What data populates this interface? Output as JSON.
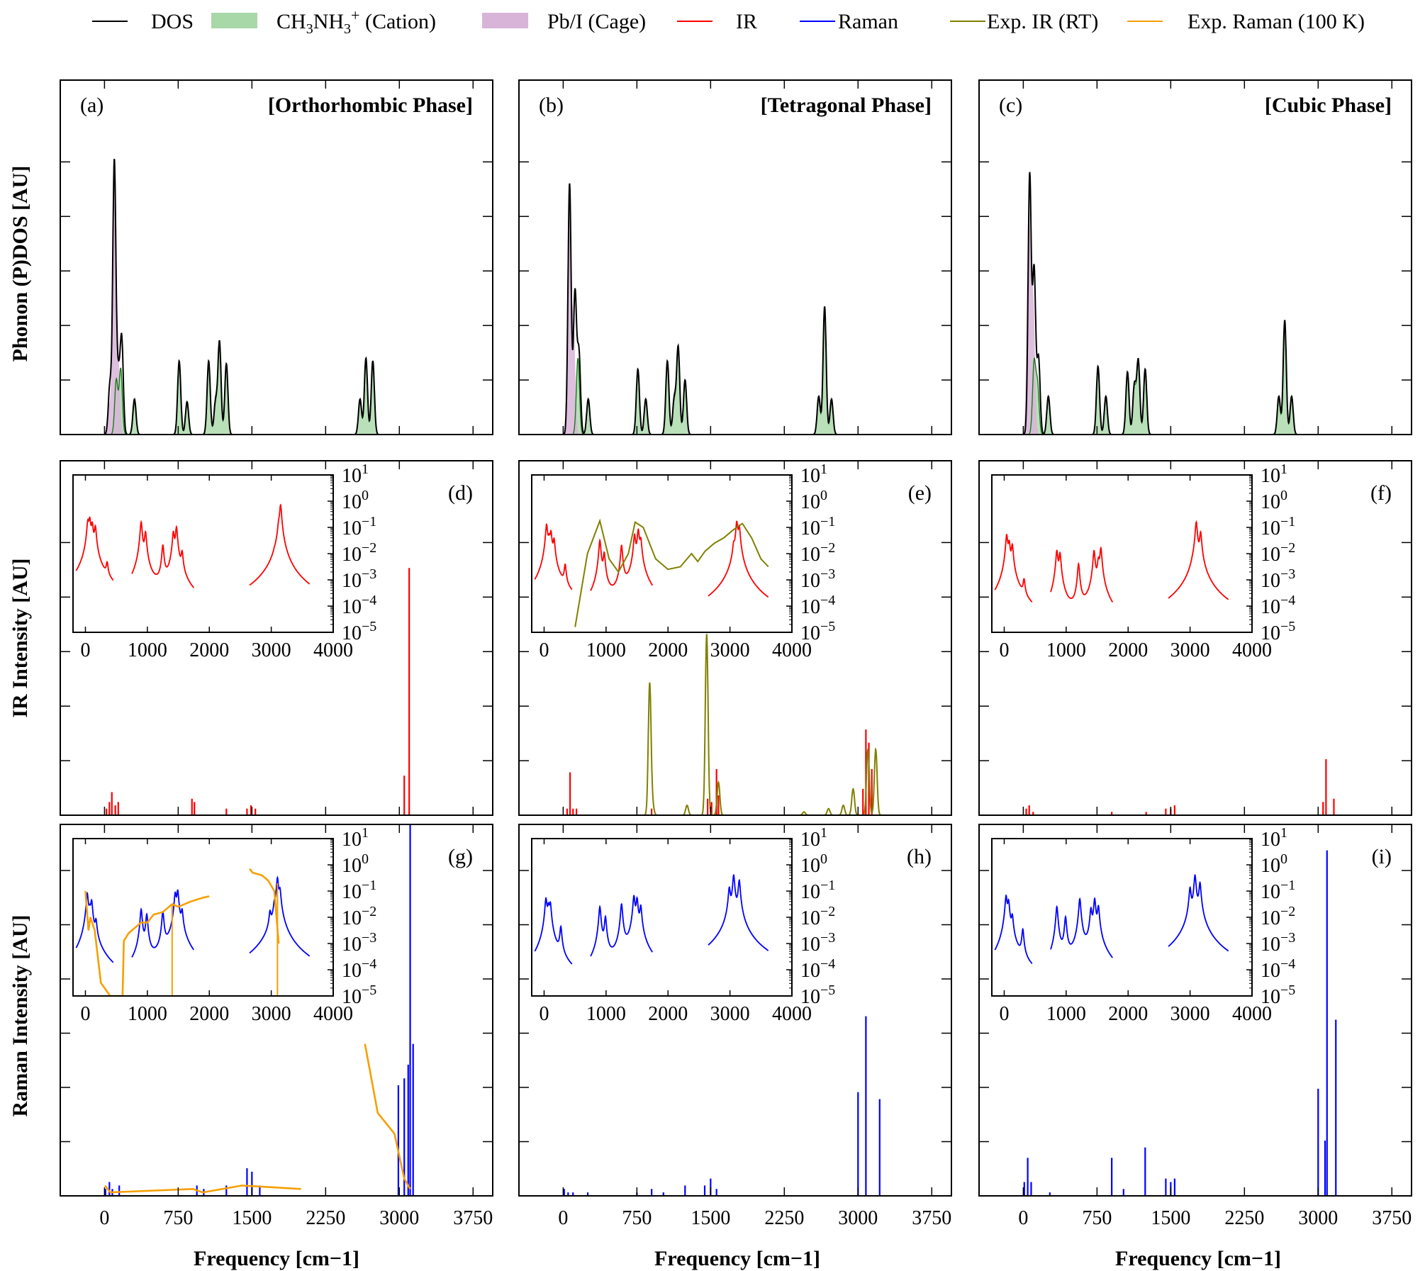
{
  "legend": [
    {
      "label": "DOS",
      "kind": "line",
      "color": "#000000"
    },
    {
      "label": "CH3NH3+ (Cation)",
      "kind": "fill",
      "color": "#a8d8a8"
    },
    {
      "label": "Pb/I (Cage)",
      "kind": "fill",
      "color": "#d8b4d8"
    },
    {
      "label": "IR",
      "kind": "line",
      "color": "#ff0000"
    },
    {
      "label": "Raman",
      "kind": "line",
      "color": "#0000ff"
    },
    {
      "label": "Exp. IR (RT)",
      "kind": "line",
      "color": "#808000"
    },
    {
      "label": "Exp. Raman (100 K)",
      "kind": "line",
      "color": "#f5a000"
    }
  ],
  "row_labels": [
    "Phonon (P)DOS [AU]",
    "IR Intensity [AU]",
    "Raman Intensity [AU]"
  ],
  "col_labels": [
    "Frequency [cm−1]",
    "Frequency [cm−1]",
    "Frequency [cm−1]"
  ],
  "panels": [
    {
      "tag": "(a)",
      "phase": "[Orthorhombic Phase]"
    },
    {
      "tag": "(b)",
      "phase": "[Tetragonal Phase]"
    },
    {
      "tag": "(c)",
      "phase": "[Cubic Phase]"
    },
    {
      "tag": "(d)"
    },
    {
      "tag": "(e)"
    },
    {
      "tag": "(f)"
    },
    {
      "tag": "(g)"
    },
    {
      "tag": "(h)"
    },
    {
      "tag": "(i)"
    }
  ],
  "chart_data": {
    "type": "line",
    "x_range": [
      -450,
      3950
    ],
    "x_ticks": [
      0,
      750,
      1500,
      2250,
      3000,
      3750
    ],
    "inset_x_range": [
      -200,
      4000
    ],
    "inset_x_ticks": [
      0,
      1000,
      2000,
      3000,
      4000
    ],
    "inset_y_decades": [
      "10^1",
      "10^0",
      "10^-1",
      "10^-2",
      "10^-3",
      "10^-4",
      "10^-5"
    ],
    "dos": {
      "orthorhombic": {
        "total": [
          [
            55,
            0.18
          ],
          [
            100,
            1.0
          ],
          [
            140,
            0.2
          ],
          [
            175,
            0.35
          ],
          [
            305,
            0.13
          ],
          [
            760,
            0.27
          ],
          [
            840,
            0.12
          ],
          [
            1060,
            0.27
          ],
          [
            1130,
            0.12
          ],
          [
            1170,
            0.34
          ],
          [
            1240,
            0.26
          ],
          [
            2600,
            0.13
          ],
          [
            2660,
            0.28
          ],
          [
            2730,
            0.27
          ]
        ],
        "cage": [
          [
            45,
            0.1
          ],
          [
            100,
            0.92
          ],
          [
            140,
            0.25
          ]
        ],
        "cation": [
          [
            120,
            0.2
          ],
          [
            165,
            0.24
          ],
          [
            305,
            0.12
          ],
          [
            760,
            0.26
          ],
          [
            840,
            0.11
          ],
          [
            1060,
            0.26
          ],
          [
            1130,
            0.11
          ],
          [
            1170,
            0.33
          ],
          [
            1240,
            0.25
          ],
          [
            2600,
            0.12
          ],
          [
            2660,
            0.27
          ],
          [
            2730,
            0.26
          ]
        ]
      },
      "tetragonal": {
        "total": [
          [
            65,
            0.92
          ],
          [
            120,
            0.52
          ],
          [
            160,
            0.3
          ],
          [
            255,
            0.13
          ],
          [
            760,
            0.24
          ],
          [
            840,
            0.13
          ],
          [
            1060,
            0.27
          ],
          [
            1130,
            0.13
          ],
          [
            1170,
            0.32
          ],
          [
            1240,
            0.2
          ],
          [
            2600,
            0.14
          ],
          [
            2660,
            0.47
          ],
          [
            2730,
            0.13
          ]
        ],
        "cage": [
          [
            60,
            0.9
          ],
          [
            105,
            0.4
          ]
        ],
        "cation": [
          [
            150,
            0.28
          ],
          [
            255,
            0.12
          ],
          [
            760,
            0.23
          ],
          [
            840,
            0.12
          ],
          [
            1060,
            0.26
          ],
          [
            1130,
            0.12
          ],
          [
            1170,
            0.31
          ],
          [
            1240,
            0.19
          ],
          [
            2600,
            0.13
          ],
          [
            2660,
            0.46
          ],
          [
            2730,
            0.12
          ]
        ]
      },
      "cubic": {
        "total": [
          [
            65,
            0.95
          ],
          [
            110,
            0.6
          ],
          [
            155,
            0.28
          ],
          [
            255,
            0.14
          ],
          [
            760,
            0.25
          ],
          [
            840,
            0.14
          ],
          [
            1060,
            0.23
          ],
          [
            1130,
            0.18
          ],
          [
            1170,
            0.27
          ],
          [
            1240,
            0.24
          ],
          [
            2600,
            0.14
          ],
          [
            2660,
            0.42
          ],
          [
            2730,
            0.14
          ]
        ],
        "cage": [
          [
            55,
            0.85
          ],
          [
            100,
            0.5
          ]
        ],
        "cation": [
          [
            110,
            0.26
          ],
          [
            145,
            0.18
          ],
          [
            255,
            0.13
          ],
          [
            760,
            0.24
          ],
          [
            840,
            0.13
          ],
          [
            1060,
            0.22
          ],
          [
            1130,
            0.17
          ],
          [
            1170,
            0.26
          ],
          [
            1240,
            0.23
          ],
          [
            2600,
            0.13
          ],
          [
            2660,
            0.41
          ],
          [
            2730,
            0.13
          ]
        ]
      }
    },
    "ir_sticks": {
      "orthorhombic": [
        [
          20,
          0.02
        ],
        [
          50,
          0.04
        ],
        [
          75,
          0.07
        ],
        [
          110,
          0.03
        ],
        [
          140,
          0.04
        ],
        [
          890,
          0.05
        ],
        [
          915,
          0.04
        ],
        [
          1240,
          0.02
        ],
        [
          1450,
          0.02
        ],
        [
          1490,
          0.03
        ],
        [
          1535,
          0.02
        ],
        [
          3050,
          0.12
        ],
        [
          3100,
          0.75
        ]
      ],
      "tetragonal": [
        [
          40,
          0.02
        ],
        [
          70,
          0.13
        ],
        [
          100,
          0.02
        ],
        [
          135,
          0.02
        ],
        [
          900,
          0.02
        ],
        [
          1470,
          0.05
        ],
        [
          1510,
          0.04
        ],
        [
          1560,
          0.14
        ],
        [
          1580,
          0.06
        ],
        [
          3050,
          0.08
        ],
        [
          3080,
          0.26
        ],
        [
          3110,
          0.22
        ],
        [
          3140,
          0.14
        ]
      ],
      "cubic": [
        [
          30,
          0.02
        ],
        [
          60,
          0.03
        ],
        [
          100,
          0.01
        ],
        [
          900,
          0.01
        ],
        [
          1250,
          0.01
        ],
        [
          1450,
          0.02
        ],
        [
          1500,
          0.02
        ],
        [
          1540,
          0.03
        ],
        [
          3050,
          0.04
        ],
        [
          3080,
          0.17
        ],
        [
          3160,
          0.05
        ]
      ]
    },
    "exp_ir_tetragonal": [
      [
        880,
        0.4
      ],
      [
        910,
        0.03
      ],
      [
        1260,
        0.03
      ],
      [
        1460,
        0.55
      ],
      [
        1580,
        0.1
      ],
      [
        2450,
        0.01
      ],
      [
        2700,
        0.02
      ],
      [
        2850,
        0.03
      ],
      [
        2950,
        0.08
      ],
      [
        3100,
        0.2
      ],
      [
        3180,
        0.2
      ]
    ],
    "raman_sticks": {
      "orthorhombic": [
        [
          10,
          0.02
        ],
        [
          50,
          0.04
        ],
        [
          80,
          0.02
        ],
        [
          150,
          0.03
        ],
        [
          940,
          0.03
        ],
        [
          1010,
          0.02
        ],
        [
          1240,
          0.03
        ],
        [
          1450,
          0.08
        ],
        [
          1500,
          0.07
        ],
        [
          1580,
          0.03
        ],
        [
          2990,
          0.32
        ],
        [
          3050,
          0.34
        ],
        [
          3090,
          0.38
        ],
        [
          3110,
          1.25
        ],
        [
          3140,
          0.44
        ]
      ],
      "tetragonal": [
        [
          10,
          0.02
        ],
        [
          50,
          0.01
        ],
        [
          100,
          0.01
        ],
        [
          250,
          0.01
        ],
        [
          750,
          0.01
        ],
        [
          900,
          0.02
        ],
        [
          1020,
          0.01
        ],
        [
          1240,
          0.03
        ],
        [
          1440,
          0.03
        ],
        [
          1500,
          0.05
        ],
        [
          1560,
          0.02
        ],
        [
          3000,
          0.3
        ],
        [
          3080,
          0.52
        ],
        [
          3220,
          0.28
        ]
      ],
      "cubic": [
        [
          10,
          0.04
        ],
        [
          45,
          0.11
        ],
        [
          80,
          0.04
        ],
        [
          270,
          0.01
        ],
        [
          900,
          0.11
        ],
        [
          1020,
          0.02
        ],
        [
          1240,
          0.14
        ],
        [
          1450,
          0.05
        ],
        [
          1500,
          0.04
        ],
        [
          1540,
          0.05
        ],
        [
          3000,
          0.31
        ],
        [
          3070,
          0.16
        ],
        [
          3090,
          1.0
        ],
        [
          3180,
          0.51
        ]
      ]
    },
    "exp_raman_orthorhombic": [
      [
        5,
        0.03
      ],
      [
        60,
        0.01
      ],
      [
        900,
        0.02
      ],
      [
        1000,
        0.01
      ],
      [
        1400,
        0.03
      ],
      [
        2000,
        0.02
      ],
      [
        2650,
        0.44
      ],
      [
        2780,
        0.24
      ],
      [
        2950,
        0.18
      ],
      [
        3050,
        0.05
      ],
      [
        3110,
        0.02
      ]
    ],
    "inset_ir": {
      "orthorhombic": [
        [
          40,
          -0.8
        ],
        [
          70,
          -0.7
        ],
        [
          110,
          -0.9
        ],
        [
          160,
          -1.0
        ],
        [
          350,
          -2.5
        ],
        [
          900,
          -0.8
        ],
        [
          970,
          -1.2
        ],
        [
          1250,
          -1.7
        ],
        [
          1420,
          -1.2
        ],
        [
          1470,
          -1.0
        ],
        [
          1560,
          -2.0
        ],
        [
          3050,
          -2.8
        ],
        [
          3120,
          -1.1
        ],
        [
          3150,
          -0.15
        ]
      ],
      "tetragonal": [
        [
          40,
          -0.9
        ],
        [
          80,
          -1.5
        ],
        [
          110,
          -1.2
        ],
        [
          160,
          -1.5
        ],
        [
          340,
          -2.5
        ],
        [
          900,
          -1.5
        ],
        [
          970,
          -2.0
        ],
        [
          1250,
          -1.7
        ],
        [
          1460,
          -1.3
        ],
        [
          1520,
          -1.1
        ],
        [
          1560,
          -1.5
        ],
        [
          3060,
          -1.8
        ],
        [
          3110,
          -0.8
        ],
        [
          3150,
          -1.0
        ]
      ],
      "cubic": [
        [
          40,
          -1.3
        ],
        [
          80,
          -1.6
        ],
        [
          130,
          -1.7
        ],
        [
          320,
          -3.1
        ],
        [
          850,
          -1.9
        ],
        [
          900,
          -2.0
        ],
        [
          1200,
          -2.4
        ],
        [
          1450,
          -1.9
        ],
        [
          1520,
          -2.3
        ],
        [
          1560,
          -1.8
        ],
        [
          3040,
          -3.2
        ],
        [
          3100,
          -0.8
        ],
        [
          3170,
          -1.2
        ]
      ]
    },
    "inset_exp_ir_tetragonal": [
      [
        500,
        -4.8
      ],
      [
        700,
        -2.0
      ],
      [
        900,
        -0.75
      ],
      [
        1050,
        -2.2
      ],
      [
        1200,
        -2.7
      ],
      [
        1360,
        -2.0
      ],
      [
        1470,
        -0.8
      ],
      [
        1600,
        -1.0
      ],
      [
        1800,
        -2.2
      ],
      [
        2000,
        -2.6
      ],
      [
        2200,
        -2.5
      ],
      [
        2380,
        -2.0
      ],
      [
        2480,
        -2.3
      ],
      [
        2600,
        -1.9
      ],
      [
        2750,
        -1.6
      ],
      [
        2900,
        -1.4
      ],
      [
        3050,
        -1.1
      ],
      [
        3200,
        -0.85
      ],
      [
        3350,
        -1.4
      ],
      [
        3500,
        -2.2
      ],
      [
        3620,
        -2.5
      ]
    ],
    "inset_raman": {
      "orthorhombic": [
        [
          30,
          -1.1
        ],
        [
          70,
          -1.8
        ],
        [
          100,
          -1.4
        ],
        [
          170,
          -2.2
        ],
        [
          900,
          -1.7
        ],
        [
          990,
          -1.9
        ],
        [
          1250,
          -1.8
        ],
        [
          1450,
          -1.1
        ],
        [
          1490,
          -1.0
        ],
        [
          1560,
          -1.8
        ],
        [
          2980,
          -1.9
        ],
        [
          3050,
          -1.7
        ],
        [
          3100,
          -0.5
        ],
        [
          3140,
          -1.0
        ]
      ],
      "tetragonal": [
        [
          30,
          -1.3
        ],
        [
          70,
          -1.6
        ],
        [
          100,
          -1.5
        ],
        [
          270,
          -2.4
        ],
        [
          900,
          -1.6
        ],
        [
          990,
          -2.0
        ],
        [
          1250,
          -1.5
        ],
        [
          1450,
          -1.2
        ],
        [
          1500,
          -1.3
        ],
        [
          1560,
          -1.6
        ],
        [
          2990,
          -0.9
        ],
        [
          3060,
          -0.4
        ],
        [
          3150,
          -0.6
        ]
      ],
      "cubic": [
        [
          30,
          -1.2
        ],
        [
          70,
          -1.4
        ],
        [
          130,
          -2.0
        ],
        [
          300,
          -2.5
        ],
        [
          850,
          -1.6
        ],
        [
          990,
          -2.0
        ],
        [
          1220,
          -1.3
        ],
        [
          1400,
          -1.7
        ],
        [
          1460,
          -1.3
        ],
        [
          1520,
          -1.6
        ],
        [
          3000,
          -0.9
        ],
        [
          3080,
          -0.4
        ],
        [
          3160,
          -0.7
        ]
      ]
    },
    "inset_exp_raman_orthorhombic": [
      [
        0,
        -1.0
      ],
      [
        50,
        -2.5
      ],
      [
        80,
        -2.0
      ],
      [
        150,
        -2.5
      ],
      [
        250,
        -4.5
      ],
      [
        400,
        -5.0
      ],
      [
        600,
        -5.0
      ],
      [
        620,
        -2.9
      ],
      [
        700,
        -2.6
      ],
      [
        800,
        -2.4
      ],
      [
        900,
        -2.2
      ],
      [
        1000,
        -2.2
      ],
      [
        1100,
        -1.9
      ],
      [
        1250,
        -1.8
      ],
      [
        1400,
        -1.5
      ],
      [
        1500,
        -1.6
      ],
      [
        1700,
        -1.4
      ],
      [
        1900,
        -1.25
      ],
      [
        2000,
        -1.2
      ],
      [
        2650,
        -0.15
      ],
      [
        2700,
        -0.3
      ],
      [
        2850,
        -0.4
      ],
      [
        2950,
        -0.6
      ],
      [
        3050,
        -1.0
      ],
      [
        3120,
        -3.0
      ]
    ]
  }
}
